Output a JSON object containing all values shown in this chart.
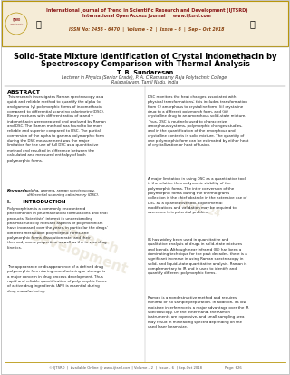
{
  "header_line1": "International Journal of Trend in Scientific Research and Development (IJTSRD)",
  "header_line2": "International Open Access Journal  |  www.ijtsrd.com",
  "header_line3": "ISSN No: 2456 - 6470  |  Volume - 2  |  Issue – 6  |  Sep – Oct 2018",
  "title_line1": "Solid-State Mixture Identification of Crystal Indomethacin by",
  "title_line2": "Spectroscopy Comparison with Thermal Analysis",
  "author": "T. B. Sundaresan",
  "affiliation1": "Lecturer in Physics (Senior Grade), P. A. C Ramasamy Raja Polytechnic College,",
  "affiliation2": "Rajapalayam, Tamil Nadu, India",
  "abstract_title": "ABSTRACT",
  "abstract_col1": "This research investigates Raman spectroscopy as a\nquick and reliable method to quantify the alpha (α)\nand gamma (γ) polymorphic forms of indomethacin\ncompared to differential scanning calorimetry (DSC).\nBinary mixtures with different ratios of α and γ\nindomethacin were prepared and analyzed by Raman\nand DSC. The Raman method was found to be more\nreliable and superior compared to DSC. The partial\nconversion of the alpha to gamma polymorphic form\nduring the DSC measurement was the major\nlimitation for the use of full DSC as a quantitative\nmethod and resulted in difference between the\ncalculated and measured enthalpy of both\npolymorphic forms.",
  "keywords_label": "Keywords:",
  "keywords_text": " alpha, gamma, raman spectroscopy,\ndifferential scanning calorimetry (DSC).",
  "intro_title": "I.       INTRODUCTION",
  "intro_col1_p1": "Polymorphism is a commonly encountered\nphenomenon in pharmaceutical formulations and final\nproducts. Scientists’ interest in understanding\npharmaceutically relevant aspects of polymorphism\nhave increased over the years, in particular the drugs’\ndifferent metastable polymorphic forms, the\npolymorphic forms dissolution rate, and their\nthermodynamic properties, as well as the in vivo drug\nkinetics.",
  "intro_col1_p2": "The appearance or disappearance of a defined drug\npolymorphic form during manufacturing or storage is\na major concern in drug process development. Thus\nrapid and reliable quantification of polymorphic forms\nof active drug ingredients (API) is essential during\ndrug manufacturing.",
  "abstract_col2_p1": "DSC monitors the heat changes associated with\nphysical transformations; this includes transformation\nfrom (i) amorphous to crystaline form, (ii) crystaline\ndrug to a different polymorph form, and (iii)\ncrystalline drug to an amorphous solid-state mixture.\nThus, DSC is routinely used to characterize\namorphous systems, polymorphic changes studies,\nand in the quantification of the amorphous and\ncrystalline contents in solid mixture. The quantity of\none polymorphic form can be estimated by either heat\nof crystallization or heat of fusion.",
  "abstract_col2_p2": "A major limitation in using DSC as a quantitative tool\nis the relative thermodynamic stability of the\npolymorphic forms. The inter conversion of the\npolymorphic forms during the thermo grams\ncollection is the chief obstacle in the extensive use of\nDSC as a quantitative tool. Experimental\nmodifications and validation may be required to\novercome this potential problem.",
  "intro_col2_p1": "IR has widely been used in quantitative and\nqualitative analysis of drugs in solid-state mixtures\nand blends. Although near infrared (IR) has been a\ndominating technique for the past decades, there is a\nsignificant increase in using Raman spectroscopy in\nsolid- and liquid-state quantitative analysis. Raman is\ncomplementary to IR and is used to identify and\nquantify different polymorphic forms.",
  "intro_col2_p2": "Raman is a nondestructive method and requires\nminimal or no sample preparation. In addition, its low\nmoisture interference is a major advantage over the IR\nspectroscopy. On the other hand, the Raman\ninstruments are expensive, and small sampling area\nmay result in misleading spectra depending on the\nused laser beam size.",
  "footer_text": "© IJTSRD  |  Available Online @ www.ijtsrd.com | Volume – 2  |  Issue – 6  | Sep-Oct 2018                    Page: 626",
  "header_border_color": "#b8960c",
  "header_bg_color": "#f5ecd7",
  "header_text_color_top": "#8B1a1a",
  "header_divider_color": "#c8a020",
  "issn_text_color": "#8B4513",
  "watermark_color_1": "#e0d5c0",
  "watermark_color_2": "#ddd5c0"
}
